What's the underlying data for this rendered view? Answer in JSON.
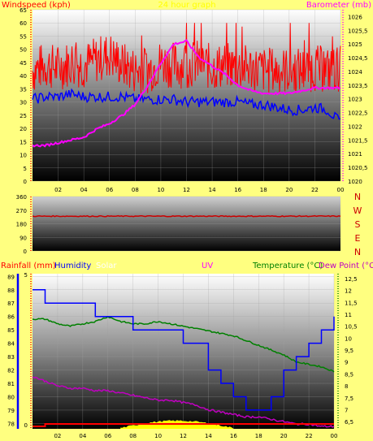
{
  "top": {
    "title_left": "Windspeed (kph)",
    "title_center": "24 hour graph",
    "title_right": "Barometer (mb)",
    "x_ticks": [
      "02",
      "04",
      "06",
      "08",
      "10",
      "12",
      "14",
      "16",
      "18",
      "20",
      "22",
      "00"
    ],
    "left_ticks": [
      "0",
      "5",
      "10",
      "15",
      "20",
      "25",
      "30",
      "35",
      "40",
      "45",
      "50",
      "55",
      "60",
      "65"
    ],
    "right_ticks": [
      "1020",
      "1020,5",
      "1021",
      "1021,5",
      "1022",
      "1022,5",
      "1023",
      "1023,5",
      "1024",
      "1024,5",
      "1025",
      "1025,5",
      "1026"
    ]
  },
  "mid": {
    "left_ticks": [
      "0",
      "90",
      "180",
      "270",
      "360"
    ],
    "compass": [
      "N",
      "W",
      "S",
      "E",
      "N"
    ]
  },
  "bottom": {
    "legend_rainfall": "Rainfall (mm)",
    "legend_humidity": "Humidity",
    "legend_solar": "Solar",
    "legend_uv": "UV",
    "legend_temperature": "Temperature (°C)",
    "legend_dewpoint": "Dew Point (°C)",
    "x_ticks": [
      "02",
      "04",
      "06",
      "08",
      "10",
      "12",
      "14",
      "16",
      "18",
      "20",
      "22",
      "00"
    ],
    "humidity_ticks": [
      "78",
      "79",
      "80",
      "81",
      "82",
      "83",
      "84",
      "85",
      "86",
      "87",
      "88",
      "89"
    ],
    "rain_ticks": [
      "0",
      "5"
    ],
    "temp_ticks": [
      "6,5",
      "7",
      "7,5",
      "8",
      "8,5",
      "9",
      "9,5",
      "10",
      "10,5",
      "11",
      "11,5",
      "12",
      "12,5"
    ]
  },
  "colors": {
    "background": "#ffff80",
    "wind": "#ff0000",
    "gust": "#0000ff",
    "barometer": "#ff00ff",
    "humidity": "#0000ff",
    "temperature": "#008000",
    "dewpoint": "#c000c0",
    "rain": "#ff0000",
    "solar": "#ffff00",
    "axis": "#ff0000"
  },
  "chart_data": [
    {
      "type": "line",
      "xlabel": "",
      "ylabel": "Windspeed (kph)",
      "y2label": "Barometer (mb)",
      "ylim": [
        0,
        65
      ],
      "y2lim": [
        1020,
        1026.25
      ],
      "x": [
        0,
        1,
        2,
        3,
        4,
        5,
        6,
        7,
        8,
        9,
        10,
        11,
        12,
        13,
        14,
        15,
        16,
        17,
        18,
        19,
        20,
        21,
        22,
        23,
        24
      ],
      "series": [
        {
          "name": "Windspeed (kph)",
          "axis": "left",
          "values": [
            42,
            44,
            43,
            45,
            44,
            46,
            48,
            44,
            42,
            42,
            45,
            44,
            44,
            45,
            43,
            44,
            43,
            43,
            42,
            42,
            42,
            42,
            43,
            42,
            43
          ]
        },
        {
          "name": "",
          "axis": "left",
          "values": [
            31,
            32,
            32,
            33,
            32,
            32,
            32,
            32,
            31,
            31,
            31,
            31,
            30,
            30,
            30,
            30,
            30,
            29,
            29,
            28,
            27,
            27,
            28,
            27,
            22
          ]
        },
        {
          "name": "Barometer (mb)",
          "axis": "right",
          "values": [
            1021.3,
            1021.3,
            1021.4,
            1021.5,
            1021.6,
            1021.9,
            1022.1,
            1022.4,
            1022.8,
            1023.5,
            1024.3,
            1025.0,
            1025.1,
            1024.5,
            1024.2,
            1023.9,
            1023.5,
            1023.3,
            1023.2,
            1023.2,
            1023.2,
            1023.3,
            1023.4,
            1023.4,
            1023.4
          ]
        }
      ]
    },
    {
      "type": "line",
      "ylabel": "",
      "ylim": [
        0,
        360
      ],
      "x": [
        0,
        24
      ],
      "series": [
        {
          "name": "",
          "values": [
            230,
            230
          ]
        }
      ]
    },
    {
      "type": "line",
      "ylabel": "Humidity",
      "y2label": "Temperature (°C)",
      "ylim": [
        77.6,
        89.2
      ],
      "y2lim": [
        6.2,
        12.7
      ],
      "x": [
        0,
        1,
        2,
        3,
        4,
        5,
        6,
        7,
        8,
        9,
        10,
        11,
        12,
        13,
        14,
        15,
        16,
        17,
        18,
        19,
        20,
        21,
        22,
        23,
        24
      ],
      "series": [
        {
          "name": "Humidity",
          "axis": "left",
          "values": [
            88,
            87,
            87,
            87,
            87,
            86,
            86,
            86,
            85,
            85,
            85,
            85,
            84,
            84,
            82,
            81,
            80,
            79,
            79,
            80,
            82,
            83,
            84,
            85,
            86
          ]
        },
        {
          "name": "Temperature (°C)",
          "axis": "right",
          "values": [
            10.8,
            10.8,
            10.6,
            10.5,
            10.6,
            10.7,
            10.9,
            10.7,
            10.6,
            10.6,
            10.7,
            10.6,
            10.5,
            10.4,
            10.3,
            10.2,
            10.1,
            9.9,
            9.7,
            9.5,
            9.3,
            9.0,
            8.9,
            8.8,
            8.6
          ]
        },
        {
          "name": "Dew Point (°C)",
          "axis": "right",
          "values": [
            8.4,
            8.2,
            8.0,
            7.9,
            7.9,
            7.8,
            7.8,
            7.7,
            7.6,
            7.5,
            7.4,
            7.4,
            7.3,
            7.2,
            7.0,
            6.9,
            6.8,
            6.7,
            6.7,
            6.6,
            6.5,
            6.4,
            6.4,
            6.3,
            6.3
          ]
        },
        {
          "name": "Rainfall (mm)",
          "axis": "rain",
          "values": [
            0,
            0.3,
            0.3,
            0.3,
            0.3,
            0.3,
            0.3,
            0.3,
            0.3,
            0.3,
            0.3,
            0.3,
            0.3,
            0.3,
            0.3,
            0.3,
            0.3,
            0.3,
            0.3,
            0.3,
            0.3,
            0.3,
            0.3,
            0.3,
            0.3
          ]
        }
      ]
    }
  ]
}
